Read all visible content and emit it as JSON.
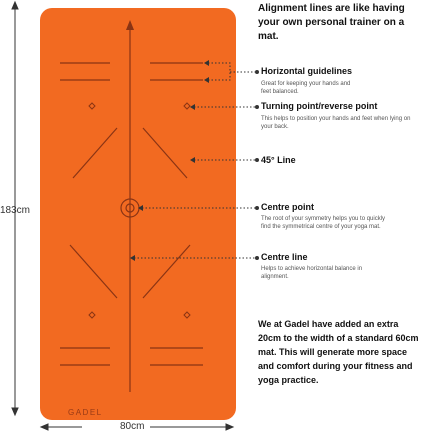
{
  "dimensions": {
    "height_label": "183cm",
    "width_label": "80cm"
  },
  "brand": {
    "logo_text": "GADEL"
  },
  "colors": {
    "mat": "#f26a21",
    "mat_lines": "#8a3414",
    "dots": "#333333"
  },
  "intro": "Alignment lines are like having your own personal trainer on a mat.",
  "callouts": [
    {
      "title": "Horizontal guidelines",
      "description": "Great for keeping your hands and feet balanced."
    },
    {
      "title": "Turning point/reverse point",
      "description": "This helps to position your hands and feet when lying on your back."
    },
    {
      "title": "45° Line",
      "description": ""
    },
    {
      "title": "Centre point",
      "description": "The root of your symmetry helps you to quickly find the symmetrical centre of your yoga mat."
    },
    {
      "title": "Centre line",
      "description": "Helps to achieve horizontal balance in alignment."
    }
  ],
  "footer_text": "We at Gadel have added an extra 20cm to the width of a standard 60cm mat. This will generate more space and comfort during your fitness and yoga practice."
}
